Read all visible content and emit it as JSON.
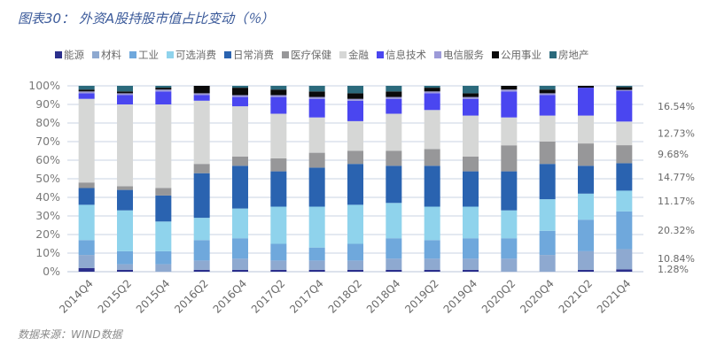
{
  "title": "图表30：  外资A股持股市值占比变动（％）",
  "source": "数据来源：WIND数据",
  "chart_data": {
    "type": "bar",
    "stacked": true,
    "percent": true,
    "title": "图表30：  外资A股持股市值占比变动（％）",
    "xlabel": "",
    "ylabel": "",
    "ylim": [
      0,
      100
    ],
    "yticks": [
      "0%",
      "10%",
      "20%",
      "30%",
      "40%",
      "50%",
      "60%",
      "70%",
      "80%",
      "90%",
      "100%"
    ],
    "grid": true,
    "legend_position": "top",
    "categories": [
      "2014Q4",
      "2015Q2",
      "2015Q4",
      "2016Q2",
      "2016Q4",
      "2017Q2",
      "2017Q4",
      "2018Q2",
      "2018Q4",
      "2019Q2",
      "2019Q4",
      "2020Q2",
      "2020Q4",
      "2021Q2",
      "2021Q4"
    ],
    "series": [
      {
        "name": "能源",
        "color": "#2b2f8c",
        "values": [
          2,
          1,
          0,
          1,
          1,
          1,
          1,
          1,
          1,
          1,
          1,
          0,
          0,
          1,
          1.28
        ]
      },
      {
        "name": "材料",
        "color": "#8ea9d0",
        "values": [
          7,
          3,
          4,
          5,
          6,
          5,
          5,
          5,
          6,
          6,
          6,
          7,
          9,
          10,
          10.84
        ]
      },
      {
        "name": "工业",
        "color": "#6fa8dc",
        "values": [
          8,
          7,
          7,
          11,
          11,
          9,
          7,
          9,
          11,
          10,
          11,
          11,
          13,
          17,
          20.32
        ]
      },
      {
        "name": "可选消费",
        "color": "#8fd3ec",
        "values": [
          19,
          22,
          16,
          12,
          16,
          20,
          22,
          21,
          19,
          18,
          17,
          15,
          17,
          14,
          11.17
        ]
      },
      {
        "name": "日常消费",
        "color": "#2a63b0",
        "values": [
          9,
          11,
          14,
          24,
          23,
          19,
          21,
          22,
          20,
          22,
          19,
          21,
          19,
          15,
          14.77
        ]
      },
      {
        "name": "医疗保健",
        "color": "#979799",
        "values": [
          3,
          2,
          4,
          5,
          5,
          7,
          8,
          7,
          8,
          9,
          8,
          14,
          12,
          12,
          9.68
        ]
      },
      {
        "name": "金融",
        "color": "#d6d7d6",
        "values": [
          45,
          44,
          45,
          34,
          27,
          24,
          19,
          16,
          20,
          21,
          22,
          15,
          14,
          15,
          12.73
        ]
      },
      {
        "name": "信息技术",
        "color": "#4a46f0",
        "values": [
          3,
          5,
          7,
          3,
          5,
          9,
          10,
          11,
          8,
          9,
          9,
          14,
          11,
          15,
          16.54
        ]
      },
      {
        "name": "电信服务",
        "color": "#9c9ad8",
        "values": [
          1,
          1,
          1,
          1,
          1,
          1,
          1,
          1,
          1,
          1,
          1,
          1,
          1,
          0,
          0.5
        ]
      },
      {
        "name": "公用事业",
        "color": "#0a0a0a",
        "values": [
          1,
          1,
          1,
          4,
          4,
          3,
          3,
          3,
          3,
          2,
          2,
          2,
          2,
          1,
          1.5
        ]
      },
      {
        "name": "房地产",
        "color": "#2b6a7c",
        "values": [
          2,
          3,
          1,
          0,
          1,
          2,
          3,
          4,
          3,
          1,
          4,
          0,
          2,
          0,
          0.67
        ]
      }
    ],
    "annotations": [
      {
        "label": "16.54%",
        "series": "信息技术"
      },
      {
        "label": "12.73%",
        "series": "金融"
      },
      {
        "label": "9.68%",
        "series": "医疗保健"
      },
      {
        "label": "14.77%",
        "series": "日常消费"
      },
      {
        "label": "11.17%",
        "series": "可选消费"
      },
      {
        "label": "20.32%",
        "series": "工业"
      },
      {
        "label": "10.84%",
        "series": "材料"
      },
      {
        "label": "1.28%",
        "series": "能源"
      }
    ]
  }
}
